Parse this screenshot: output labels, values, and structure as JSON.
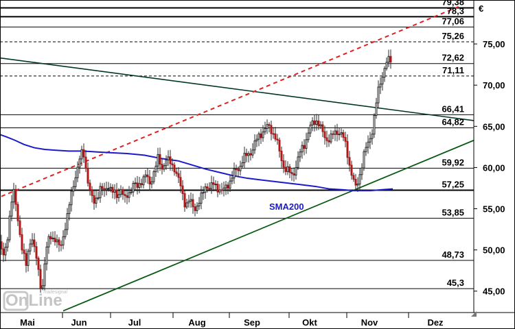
{
  "chart_data": {
    "type": "candlestick",
    "currency_label": "€",
    "x_ticks": [
      "Mai",
      "Jun",
      "Jul",
      "Aug",
      "Sep",
      "Okt",
      "Nov",
      "Dez"
    ],
    "y_ticks": [
      "75,00",
      "70,00",
      "65,00",
      "60,00",
      "55,00",
      "50,00",
      "45,00"
    ],
    "y_tick_values": [
      75,
      70,
      65,
      60,
      55,
      50,
      45
    ],
    "ylim": [
      42.4,
      80.0
    ],
    "levels": [
      {
        "value": 79.38,
        "label": "79,38",
        "style": "solid-thick"
      },
      {
        "value": 78.3,
        "label": "78,3",
        "style": "solid-thick"
      },
      {
        "value": 77.06,
        "label": "77,06",
        "style": "solid"
      },
      {
        "value": 75.26,
        "label": "75,26",
        "style": "dashed"
      },
      {
        "value": 72.62,
        "label": "72,62",
        "style": "solid"
      },
      {
        "value": 71.11,
        "label": "71,11",
        "style": "dashed"
      },
      {
        "value": 66.41,
        "label": "66,41",
        "style": "solid"
      },
      {
        "value": 64.82,
        "label": "64,82",
        "style": "solid"
      },
      {
        "value": 59.92,
        "label": "59,92",
        "style": "solid"
      },
      {
        "value": 57.25,
        "label": "57,25",
        "style": "solid-thick"
      },
      {
        "value": 53.85,
        "label": "53,85",
        "style": "solid"
      },
      {
        "value": 48.73,
        "label": "48,73",
        "style": "solid"
      },
      {
        "value": 45.3,
        "label": "45,3",
        "style": "solid"
      }
    ],
    "sma_label": "SMA200",
    "sma_color": "#1a1acc",
    "sma200": [
      [
        0,
        64.0
      ],
      [
        10,
        63.7
      ],
      [
        22,
        63.3
      ],
      [
        35,
        62.8
      ],
      [
        50,
        62.4
      ],
      [
        65,
        62.2
      ],
      [
        80,
        62.1
      ],
      [
        100,
        62.0
      ],
      [
        120,
        62.0
      ],
      [
        140,
        61.9
      ],
      [
        160,
        61.8
      ],
      [
        185,
        61.7
      ],
      [
        210,
        61.5
      ],
      [
        235,
        61.1
      ],
      [
        260,
        60.8
      ],
      [
        280,
        60.3
      ],
      [
        300,
        59.8
      ],
      [
        320,
        59.4
      ],
      [
        340,
        59.0
      ],
      [
        360,
        58.7
      ],
      [
        380,
        58.5
      ],
      [
        400,
        58.3
      ],
      [
        420,
        58.1
      ],
      [
        440,
        57.9
      ],
      [
        460,
        57.7
      ],
      [
        480,
        57.4
      ],
      [
        500,
        57.3
      ],
      [
        515,
        57.2
      ],
      [
        525,
        57.2
      ],
      [
        540,
        57.2
      ],
      [
        555,
        57.3
      ],
      [
        572,
        57.4
      ]
    ],
    "trendlines": [
      {
        "name": "resistance-trendline",
        "color": "#00352a",
        "width": 1.6,
        "dash": "",
        "from": [
          0,
          73.3
        ],
        "to": [
          690,
          65.7
        ]
      },
      {
        "name": "support-trendline",
        "color": "#0a5a12",
        "width": 1.8,
        "dash": "",
        "from": [
          92,
          42.6
        ],
        "to": [
          690,
          63.3
        ]
      },
      {
        "name": "dashed-red-trendline",
        "color": "#e02020",
        "width": 2,
        "dash": "6,5",
        "from": [
          2,
          56.5
        ],
        "to": [
          670,
          79.6
        ]
      }
    ],
    "colors": {
      "up": "#2a2a2a",
      "down": "#b01818",
      "grid": "#000000"
    },
    "price_path": [
      [
        0,
        51.0
      ],
      [
        6,
        48.8
      ],
      [
        11,
        51.5
      ],
      [
        16,
        56.0
      ],
      [
        20,
        57.0
      ],
      [
        26,
        53.5
      ],
      [
        32,
        50.5
      ],
      [
        38,
        48.0
      ],
      [
        46,
        52.0
      ],
      [
        52,
        49.5
      ],
      [
        57,
        46.5
      ],
      [
        61,
        44.9
      ],
      [
        66,
        49.5
      ],
      [
        72,
        51.5
      ],
      [
        80,
        51.5
      ],
      [
        88,
        50.0
      ],
      [
        95,
        53.0
      ],
      [
        100,
        55.0
      ],
      [
        106,
        57.5
      ],
      [
        111,
        59.5
      ],
      [
        116,
        61.0
      ],
      [
        121,
        62.0
      ],
      [
        125,
        60.0
      ],
      [
        130,
        57.5
      ],
      [
        136,
        55.5
      ],
      [
        141,
        56.5
      ],
      [
        146,
        57.5
      ],
      [
        152,
        57.0
      ],
      [
        158,
        58.0
      ],
      [
        164,
        57.0
      ],
      [
        170,
        56.5
      ],
      [
        176,
        57.5
      ],
      [
        182,
        56.0
      ],
      [
        188,
        57.0
      ],
      [
        194,
        58.0
      ],
      [
        200,
        57.5
      ],
      [
        206,
        58.5
      ],
      [
        212,
        59.0
      ],
      [
        218,
        58.0
      ],
      [
        224,
        59.5
      ],
      [
        230,
        61.0
      ],
      [
        236,
        60.0
      ],
      [
        242,
        61.0
      ],
      [
        248,
        60.5
      ],
      [
        254,
        60.0
      ],
      [
        260,
        58.5
      ],
      [
        265,
        57.0
      ],
      [
        270,
        55.5
      ],
      [
        276,
        56.0
      ],
      [
        282,
        55.0
      ],
      [
        288,
        55.5
      ],
      [
        294,
        56.5
      ],
      [
        300,
        58.0
      ],
      [
        306,
        57.5
      ],
      [
        312,
        58.0
      ],
      [
        318,
        57.5
      ],
      [
        324,
        57.0
      ],
      [
        330,
        57.8
      ],
      [
        336,
        58.5
      ],
      [
        342,
        59.5
      ],
      [
        348,
        60.0
      ],
      [
        354,
        61.0
      ],
      [
        360,
        61.5
      ],
      [
        366,
        62.0
      ],
      [
        372,
        63.0
      ],
      [
        378,
        64.0
      ],
      [
        384,
        64.5
      ],
      [
        390,
        65.0
      ],
      [
        396,
        64.5
      ],
      [
        402,
        63.5
      ],
      [
        408,
        61.5
      ],
      [
        414,
        60.0
      ],
      [
        420,
        59.5
      ],
      [
        426,
        59.0
      ],
      [
        432,
        60.5
      ],
      [
        438,
        62.0
      ],
      [
        444,
        63.0
      ],
      [
        450,
        64.5
      ],
      [
        456,
        65.5
      ],
      [
        462,
        65.8
      ],
      [
        468,
        64.5
      ],
      [
        474,
        63.5
      ],
      [
        480,
        63.5
      ],
      [
        486,
        64.0
      ],
      [
        492,
        64.5
      ],
      [
        498,
        64.0
      ],
      [
        504,
        62.5
      ],
      [
        510,
        60.0
      ],
      [
        514,
        58.5
      ],
      [
        518,
        57.5
      ],
      [
        522,
        58.5
      ],
      [
        526,
        60.0
      ],
      [
        530,
        61.5
      ],
      [
        534,
        62.5
      ],
      [
        538,
        63.5
      ],
      [
        542,
        64.5
      ],
      [
        546,
        66.5
      ],
      [
        550,
        69.0
      ],
      [
        554,
        70.5
      ],
      [
        558,
        71.5
      ],
      [
        562,
        72.5
      ],
      [
        566,
        73.0
      ],
      [
        570,
        73.2
      ]
    ]
  },
  "watermark": {
    "small": "Tradesignal",
    "big": "OnLine"
  }
}
